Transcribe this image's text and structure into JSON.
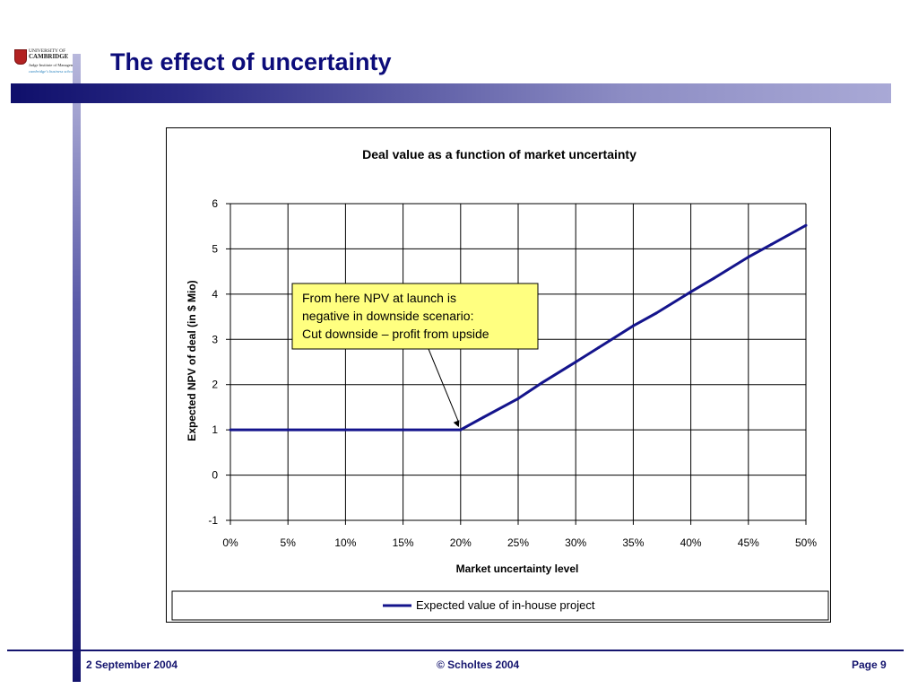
{
  "slide": {
    "title": "The effect of uncertainty",
    "logo": {
      "line1": "UNIVERSITY OF",
      "line2": "CAMBRIDGE",
      "line3": "Judge Institute of Management",
      "tagline": "cambridge's business school"
    },
    "footer": {
      "date": "2 September 2004",
      "copyright": "© Scholtes 2004",
      "page": "Page 9"
    },
    "colors": {
      "navy": "#14146e",
      "title": "#0c0c7a",
      "series": "#14148c",
      "callout_bg": "#ffff80"
    }
  },
  "chart_data": {
    "type": "line",
    "title": "Deal value as a function of market uncertainty",
    "xlabel": "Market uncertainty level",
    "ylabel": "Expected NPV of deal (in $ Mio)",
    "x_ticks": [
      "0%",
      "5%",
      "10%",
      "15%",
      "20%",
      "25%",
      "30%",
      "35%",
      "40%",
      "45%",
      "50%"
    ],
    "y_ticks": [
      "-1",
      "0",
      "1",
      "2",
      "3",
      "4",
      "5",
      "6"
    ],
    "xlim": [
      0,
      50
    ],
    "ylim": [
      -1,
      6
    ],
    "grid": true,
    "legend_position": "bottom",
    "series": [
      {
        "name": "Expected value of in-house project",
        "x": [
          0,
          5,
          10,
          15,
          20,
          22,
          25,
          27,
          30,
          32,
          35,
          37,
          40,
          42,
          45,
          47,
          50
        ],
        "y": [
          1.0,
          1.0,
          1.0,
          1.0,
          1.0,
          1.28,
          1.69,
          2.03,
          2.5,
          2.82,
          3.3,
          3.58,
          4.05,
          4.35,
          4.82,
          5.1,
          5.52
        ]
      }
    ],
    "annotation": {
      "lines": [
        "From here NPV at launch is",
        "negative in downside scenario:",
        "Cut downside – profit from upside"
      ],
      "point_x": 20,
      "point_y": 1.0
    }
  }
}
